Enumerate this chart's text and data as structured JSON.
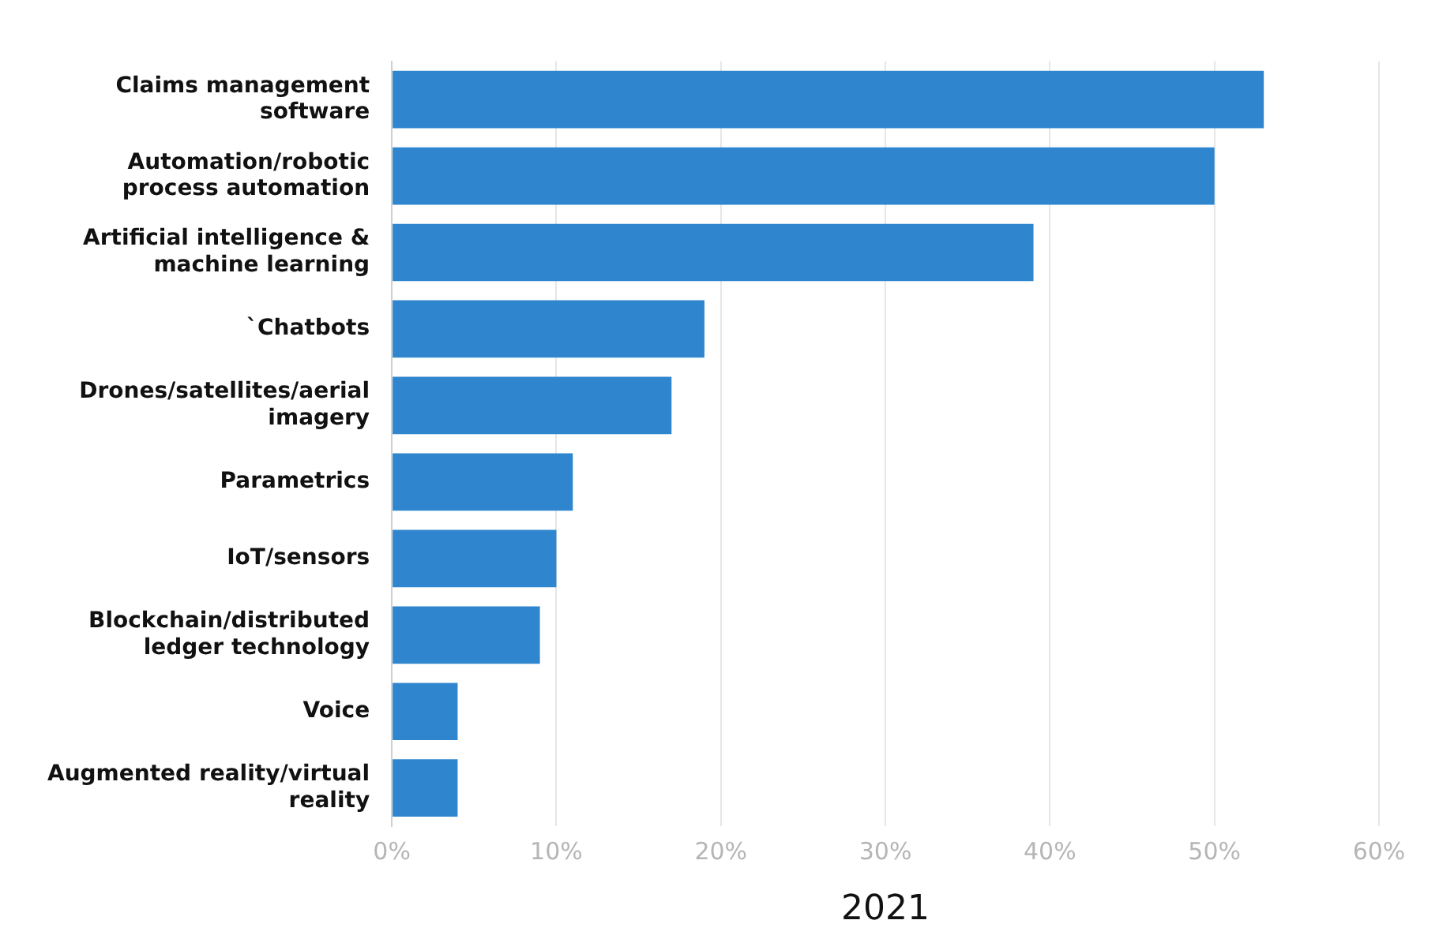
{
  "chart_data": {
    "type": "bar",
    "orientation": "horizontal",
    "xlabel": "2021",
    "categories": [
      "Claims management software",
      "Automation/robotic process automation",
      "Artificial intelligence & machine learning",
      "`Chatbots",
      "Drones/satellites/aerial imagery",
      "Parametrics",
      "IoT/sensors",
      "Blockchain/distributed ledger technology",
      "Voice",
      "Augmented reality/virtual reality"
    ],
    "series": [
      {
        "color": "#2f86cf",
        "values": [
          53,
          50,
          39,
          19,
          17,
          11,
          10,
          9,
          4,
          4
        ]
      }
    ],
    "xlim": [
      0,
      60
    ],
    "xticks": [
      {
        "value": 0,
        "label": "0%"
      },
      {
        "value": 10,
        "label": "10%"
      },
      {
        "value": 20,
        "label": "20%"
      },
      {
        "value": 30,
        "label": "30%"
      },
      {
        "value": 40,
        "label": "40%"
      },
      {
        "value": 50,
        "label": "50%"
      },
      {
        "value": 60,
        "label": "60%"
      }
    ],
    "grid": "x",
    "legend": false
  }
}
